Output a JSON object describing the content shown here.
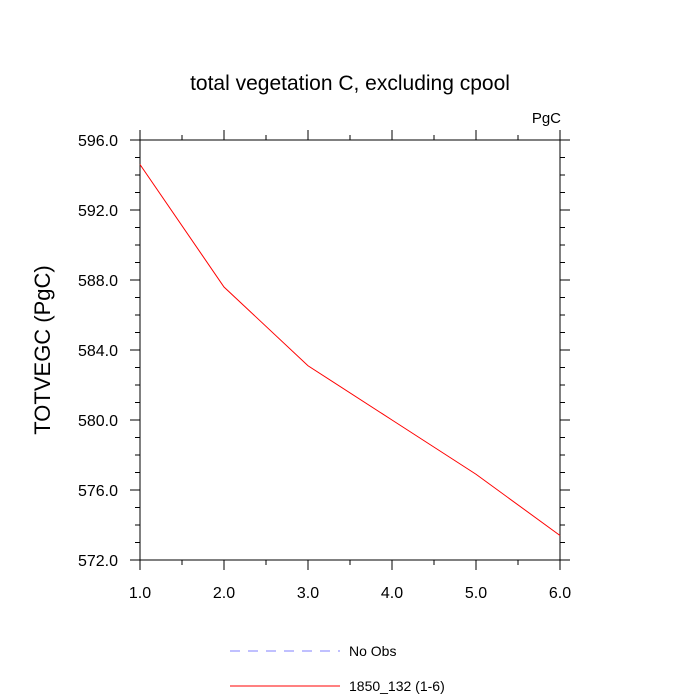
{
  "chart_data": {
    "type": "line",
    "title": "total vegetation C, excluding cpool",
    "units": "PgC",
    "xlabel": "",
    "ylabel": "TOTVEGC  (PgC)",
    "xlim": [
      1.0,
      6.0
    ],
    "ylim": [
      572.0,
      596.0
    ],
    "x_ticks": [
      "1.0",
      "2.0",
      "3.0",
      "4.0",
      "5.0",
      "6.0"
    ],
    "y_ticks": [
      "572.0",
      "576.0",
      "580.0",
      "584.0",
      "588.0",
      "592.0",
      "596.0"
    ],
    "x_tick_values": [
      1,
      2,
      3,
      4,
      5,
      6
    ],
    "y_tick_values": [
      572,
      576,
      580,
      584,
      588,
      592,
      596
    ],
    "grid": false,
    "legend_position": "bottom",
    "series": [
      {
        "name": "No Obs",
        "color": "#8080ff",
        "style": "dashed",
        "x": [],
        "values": []
      },
      {
        "name": "1850_132 (1-6)",
        "color": "#ff0000",
        "style": "solid",
        "x": [
          1,
          2,
          3,
          4,
          5,
          6
        ],
        "values": [
          594.6,
          587.6,
          583.1,
          580.0,
          576.9,
          573.4
        ]
      }
    ]
  }
}
